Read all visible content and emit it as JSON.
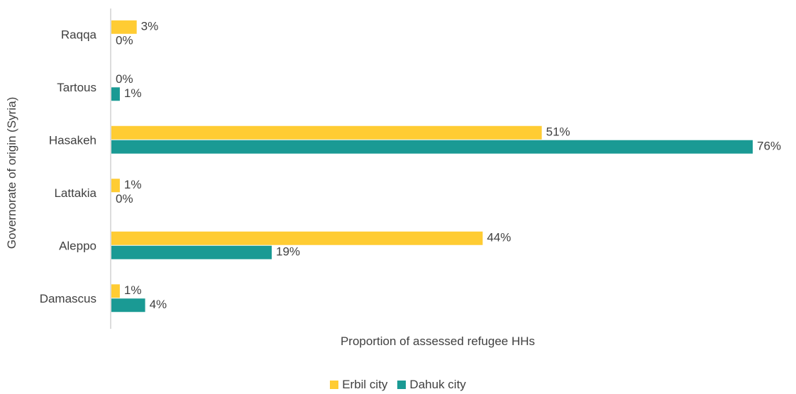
{
  "chart_data": {
    "type": "bar",
    "orientation": "horizontal",
    "categories": [
      "Raqqa",
      "Tartous",
      "Hasakeh",
      "Lattakia",
      "Aleppo",
      "Damascus"
    ],
    "series": [
      {
        "name": "Erbil city",
        "color": "#FFCC33",
        "values": [
          3,
          0,
          51,
          1,
          44,
          1
        ],
        "labels": [
          "3%",
          "0%",
          "51%",
          "1%",
          "44%",
          "1%"
        ]
      },
      {
        "name": "Dahuk city",
        "color": "#1A9A94",
        "values": [
          0,
          1,
          76,
          0,
          19,
          4
        ],
        "labels": [
          "0%",
          "1%",
          "76%",
          "0%",
          "19%",
          "4%"
        ]
      }
    ],
    "xlabel": "Proportion  of assessed refugee HHs",
    "ylabel": "Governorate of origin  (Syria)",
    "xlim": [
      0,
      76
    ],
    "grid": false,
    "legend_position": "bottom"
  }
}
